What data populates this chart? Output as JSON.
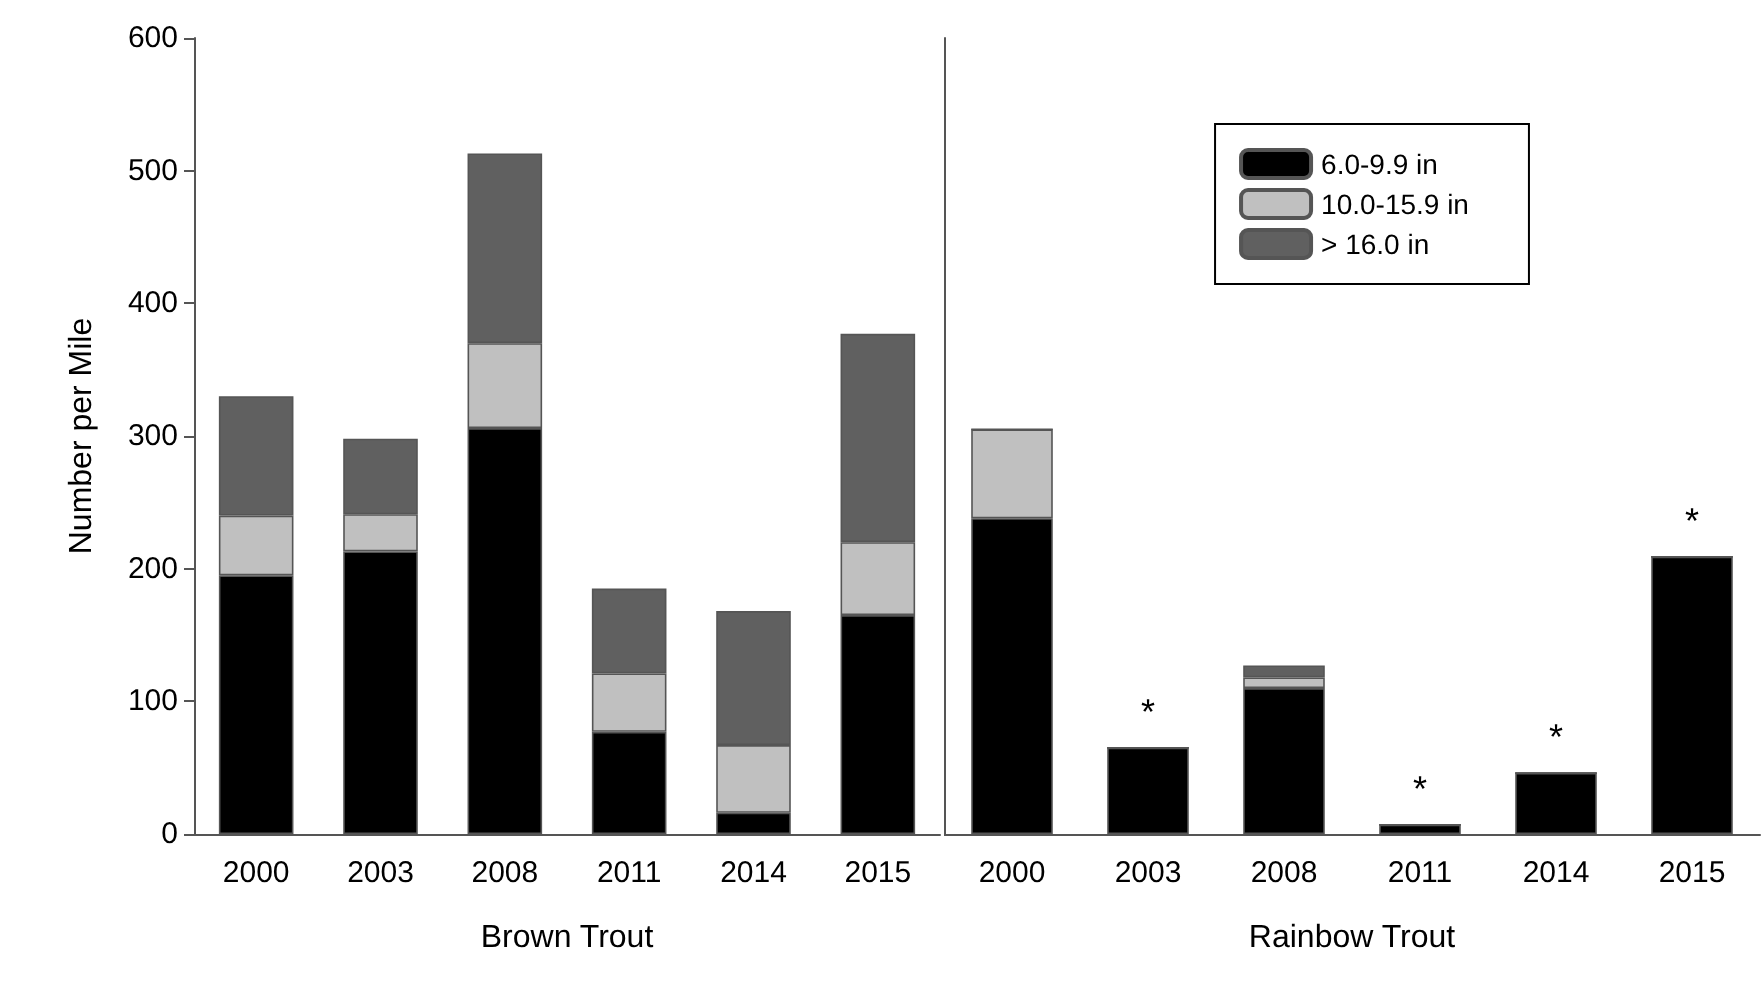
{
  "chart_data": [
    {
      "type": "bar",
      "xlabel": "Brown Trout",
      "ylabel": "Number per Mile",
      "categories": [
        "2000",
        "2003",
        "2008",
        "2011",
        "2014",
        "2015"
      ],
      "stacked": true,
      "ylim": [
        0,
        600
      ],
      "yticks": [
        0,
        100,
        200,
        300,
        400,
        500,
        600
      ],
      "legend": false,
      "series": [
        {
          "color": "#000000",
          "values": [
            195,
            213,
            306,
            77,
            16,
            165
          ]
        },
        {
          "color": "#c0c0c0",
          "values": [
            45,
            28,
            64,
            44,
            51,
            55
          ]
        },
        {
          "color": "#606060",
          "values": [
            90,
            57,
            143,
            64,
            101,
            157
          ]
        }
      ]
    },
    {
      "type": "bar",
      "xlabel": "Rainbow Trout",
      "categories": [
        "2000",
        "2003",
        "2008",
        "2011",
        "2014",
        "2015"
      ],
      "stacked": true,
      "ylim": [
        0,
        600
      ],
      "yticks": [
        0,
        100,
        200,
        300,
        400,
        500,
        600
      ],
      "tick_labels": "x",
      "legend": "top",
      "series": [
        {
          "name": "6.0-9.9 in",
          "color": "#000000",
          "values": [
            238,
            65,
            110,
            7,
            46,
            209
          ]
        },
        {
          "name": "10.0-15.9 in",
          "color": "#c0c0c0",
          "values": [
            67,
            0,
            8,
            0,
            0,
            0
          ]
        },
        {
          "name": "> 16.0 in",
          "color": "#606060",
          "values": [
            0,
            0,
            9,
            0,
            0,
            0
          ]
        }
      ],
      "annotations": [
        {
          "text": "*",
          "x": "2003",
          "y": 65
        },
        {
          "text": "*",
          "x": "2011",
          "y": 7
        },
        {
          "text": "*",
          "x": "2014",
          "y": 46
        },
        {
          "text": "*",
          "x": "2015",
          "y": 209
        }
      ]
    }
  ]
}
